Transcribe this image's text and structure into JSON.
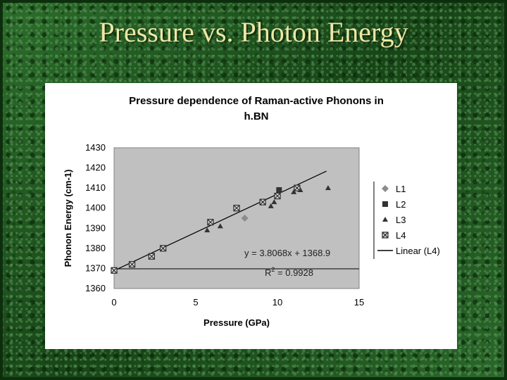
{
  "slide": {
    "title": "Pressure vs. Photon Energy"
  },
  "chart_data": {
    "type": "scatter",
    "title_line1": "Pressure dependence of Raman-active Phonons in",
    "title_line2": "h.BN",
    "xlabel": "Pressure (GPa)",
    "ylabel": "Phonon Energy (cm-1)",
    "xlim": [
      0,
      15
    ],
    "ylim": [
      1360,
      1430
    ],
    "xticks": [
      0,
      5,
      10,
      15
    ],
    "yticks": [
      1360,
      1370,
      1380,
      1390,
      1400,
      1410,
      1420,
      1430
    ],
    "plot_background": "#c0c0c0",
    "grid": false,
    "legend_position": "right",
    "series": [
      {
        "name": "L1",
        "marker": "diamond",
        "color": "#8c8c8c",
        "points": [
          [
            8.0,
            1395
          ]
        ]
      },
      {
        "name": "L2",
        "marker": "square",
        "color": "#333333",
        "points": [
          [
            10.1,
            1409
          ]
        ]
      },
      {
        "name": "L3",
        "marker": "triangle",
        "color": "#333333",
        "points": [
          [
            5.7,
            1389
          ],
          [
            6.5,
            1391
          ],
          [
            9.6,
            1401
          ],
          [
            9.8,
            1403
          ],
          [
            11.0,
            1408
          ],
          [
            11.4,
            1409
          ],
          [
            13.1,
            1410
          ]
        ]
      },
      {
        "name": "L4",
        "marker": "boxed-x",
        "color": "#333333",
        "points": [
          [
            0.0,
            1369
          ],
          [
            1.1,
            1372
          ],
          [
            2.3,
            1376
          ],
          [
            3.0,
            1380
          ],
          [
            5.9,
            1393
          ],
          [
            7.5,
            1400
          ],
          [
            9.1,
            1403
          ],
          [
            10.0,
            1406
          ],
          [
            11.2,
            1410
          ]
        ]
      }
    ],
    "trendline": {
      "name": "Linear (L4)",
      "slope": 3.8068,
      "intercept": 1368.9,
      "x_range": [
        0,
        13
      ],
      "color": "#000000"
    },
    "equation_label": "y = 3.8068x + 1368.9",
    "r2_label_prefix": "R",
    "r2_label_exp": "2",
    "r2_label_value": " = 0.9928"
  }
}
